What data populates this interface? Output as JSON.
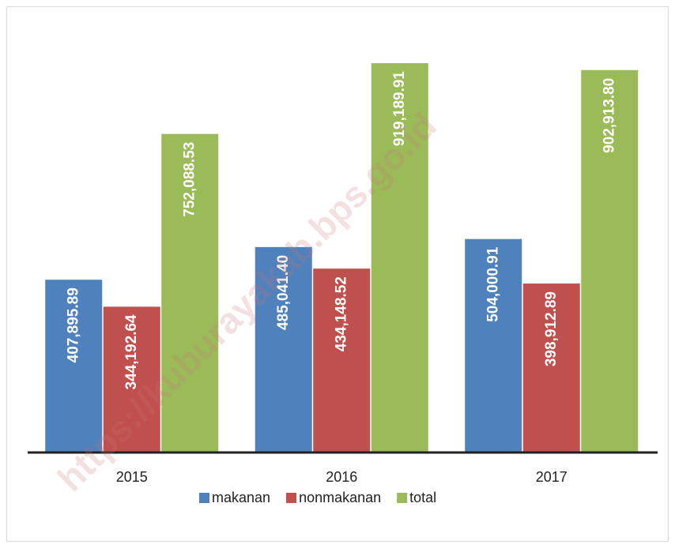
{
  "chart_data": {
    "type": "bar",
    "categories": [
      "2015",
      "2016",
      "2017"
    ],
    "series": [
      {
        "name": "makanan",
        "color": "#4f81bd",
        "values": [
          407895.89,
          485041.4,
          504000.91
        ],
        "value_labels": [
          "407,895.89",
          "485,041.40",
          "504,000.91"
        ]
      },
      {
        "name": "nonmakanan",
        "color": "#c0504d",
        "values": [
          344192.64,
          434148.52,
          398912.89
        ],
        "value_labels": [
          "344,192.64",
          "434,148.52",
          "398,912.89"
        ]
      },
      {
        "name": "total",
        "color": "#9bbb59",
        "values": [
          752088.53,
          919189.91,
          902913.8
        ],
        "value_labels": [
          "752,088.53",
          "919,189.91",
          "902,913.80"
        ]
      }
    ],
    "legend": "bottom",
    "watermark": "https://kuburayakab.bps.go.id"
  }
}
